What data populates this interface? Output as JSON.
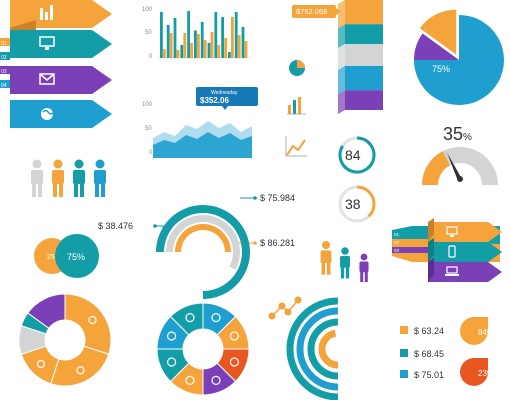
{
  "colors": {
    "orange": "#F5A33B",
    "teal": "#139DA6",
    "blue": "#1F9FCF",
    "purple": "#7B3FB8",
    "gray": "#D3D4D5",
    "red": "#E8571F",
    "darkteal": "#0D7F86",
    "lightblue": "#A7D8EE"
  },
  "ribbons": {
    "numbers": [
      "01",
      "02",
      "03",
      "04"
    ],
    "icons": [
      "bars-chart-icon",
      "monitor-icon",
      "envelope-icon",
      "globe-icon"
    ]
  },
  "chart_data": [
    {
      "type": "bar",
      "title": "",
      "ylim": [
        0,
        100
      ],
      "ytick_labels": [
        "100",
        "50",
        "0"
      ],
      "series": [
        {
          "color": "teal",
          "values": [
            92,
            66,
            80,
            26,
            94,
            55,
            72,
            30,
            92,
            82,
            12,
            92,
            62
          ]
        },
        {
          "color": "orange",
          "values": [
            18,
            50,
            16,
            50,
            30,
            48,
            36,
            52,
            26,
            40,
            82,
            46,
            34
          ]
        }
      ]
    },
    {
      "type": "area",
      "ylim": [
        0,
        100
      ],
      "ytick_labels": [
        "100",
        "50",
        "0"
      ],
      "tooltip": {
        "label": "Wednesday",
        "value": "$352.06"
      },
      "series": [
        {
          "color": "lightblue",
          "values": [
            40,
            52,
            44,
            66,
            58,
            74,
            60,
            70,
            52,
            64
          ]
        },
        {
          "color": "blue",
          "values": [
            26,
            36,
            30,
            46,
            38,
            52,
            40,
            50,
            36,
            44
          ]
        }
      ]
    },
    {
      "type": "stacked-bar",
      "value_label": "$752.068",
      "segments": [
        {
          "color": "orange",
          "share": 22
        },
        {
          "color": "teal",
          "share": 18
        },
        {
          "color": "gray",
          "share": 20
        },
        {
          "color": "blue",
          "share": 22
        },
        {
          "color": "purple",
          "share": 18
        }
      ]
    },
    {
      "type": "pie",
      "label": "75%",
      "slices": [
        {
          "color": "blue",
          "value": 75
        },
        {
          "color": "purple",
          "value": 10
        },
        {
          "color": "orange",
          "value": 15
        }
      ]
    },
    {
      "type": "gauge",
      "value_label": "35",
      "unit": "%",
      "value": 35
    },
    {
      "type": "ring-metrics",
      "items": [
        {
          "label": "84",
          "value": 84,
          "color": "teal"
        },
        {
          "label": "38",
          "value": 38,
          "color": "orange"
        }
      ]
    },
    {
      "type": "radial-bar",
      "labels": [
        "$ 75.984",
        "$ 38.476",
        "$ 86.281"
      ],
      "rings": [
        {
          "color": "teal",
          "value": 75
        },
        {
          "color": "gray",
          "value": 58
        },
        {
          "color": "orange",
          "value": 50
        }
      ]
    },
    {
      "type": "venn",
      "labels": [
        "25",
        "75%"
      ],
      "values": [
        25,
        75
      ]
    },
    {
      "type": "donut",
      "slices": [
        {
          "color": "orange",
          "value": 30,
          "icon": "image-icon"
        },
        {
          "color": "orange",
          "value": 25,
          "icon": "microphone-icon"
        },
        {
          "color": "orange",
          "value": 15,
          "icon": "chat-icon"
        },
        {
          "color": "gray",
          "value": 10,
          "icon": ""
        },
        {
          "color": "teal",
          "value": 5,
          "icon": ""
        },
        {
          "color": "purple",
          "value": 15,
          "icon": ""
        }
      ]
    },
    {
      "type": "icon-wheel",
      "segments": [
        {
          "color": "blue",
          "icon": "wifi-icon"
        },
        {
          "color": "orange",
          "icon": "rss-icon"
        },
        {
          "color": "red",
          "icon": "camera-icon"
        },
        {
          "color": "purple",
          "icon": "gamepad-icon"
        },
        {
          "color": "orange",
          "icon": "shopping-cart-icon"
        },
        {
          "color": "teal",
          "icon": "music-icon"
        },
        {
          "color": "blue",
          "icon": "mail-icon"
        },
        {
          "color": "teal",
          "icon": "globe-icon"
        }
      ]
    },
    {
      "type": "concentric-rings",
      "legend": [
        {
          "label": "$ 63.24",
          "color": "orange"
        },
        {
          "label": "$ 68.45",
          "color": "teal"
        },
        {
          "label": "$ 75.01",
          "color": "blue"
        }
      ],
      "values": [
        63.24,
        68.45,
        75.01
      ]
    },
    {
      "type": "percent-badges",
      "items": [
        {
          "label": "84%",
          "color": "orange"
        },
        {
          "label": "23%",
          "color": "red"
        }
      ]
    }
  ],
  "people_groups": [
    {
      "colors": [
        "gray",
        "orange",
        "teal",
        "blue"
      ]
    },
    {
      "colors": [
        "orange",
        "teal",
        "purple"
      ]
    }
  ],
  "right_ribbons": {
    "numbers": [
      "01",
      "02",
      "03"
    ],
    "icons": [
      "monitor-icon",
      "phone-icon",
      "laptop-icon"
    ]
  },
  "mini_icons": [
    "pie-mini-icon",
    "bar-mini-icon",
    "line-mini-icon",
    "network-icon"
  ]
}
